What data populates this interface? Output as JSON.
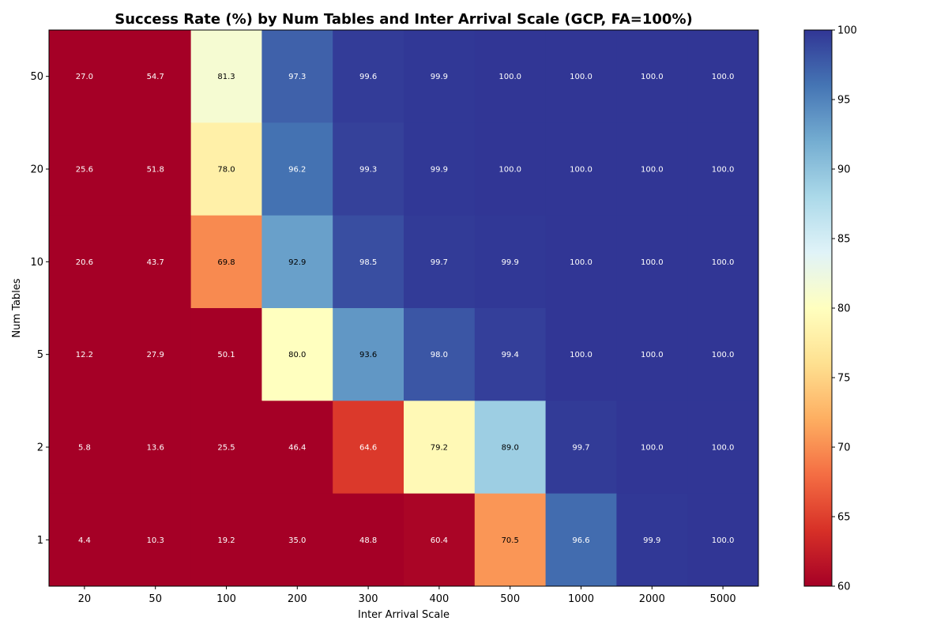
{
  "chart_data": {
    "type": "heatmap",
    "title": "Success Rate (%) by Num Tables and Inter Arrival Scale (GCP, FA=100%)",
    "xlabel": "Inter Arrival Scale",
    "ylabel": "Num Tables",
    "x_categories": [
      "20",
      "50",
      "100",
      "200",
      "300",
      "400",
      "500",
      "1000",
      "2000",
      "5000"
    ],
    "y_categories_top_to_bottom": [
      "50",
      "20",
      "10",
      "5",
      "2",
      "1"
    ],
    "values": [
      [
        27.0,
        54.7,
        81.3,
        97.3,
        99.6,
        99.9,
        100.0,
        100.0,
        100.0,
        100.0
      ],
      [
        25.6,
        51.8,
        78.0,
        96.2,
        99.3,
        99.9,
        100.0,
        100.0,
        100.0,
        100.0
      ],
      [
        20.6,
        43.7,
        69.8,
        92.9,
        98.5,
        99.7,
        99.9,
        100.0,
        100.0,
        100.0
      ],
      [
        12.2,
        27.9,
        50.1,
        80.0,
        93.6,
        98.0,
        99.4,
        100.0,
        100.0,
        100.0
      ],
      [
        5.8,
        13.6,
        25.5,
        46.4,
        64.6,
        79.2,
        89.0,
        99.7,
        100.0,
        100.0
      ],
      [
        4.4,
        10.3,
        19.2,
        35.0,
        48.8,
        60.4,
        70.5,
        96.6,
        99.9,
        100.0
      ]
    ],
    "colormap": "RdYlBu",
    "vmin": 60,
    "vmax": 100,
    "colorbar": {
      "ticks": [
        "60",
        "65",
        "70",
        "75",
        "80",
        "85",
        "90",
        "95",
        "100"
      ],
      "placement": "right"
    },
    "grid": false
  }
}
